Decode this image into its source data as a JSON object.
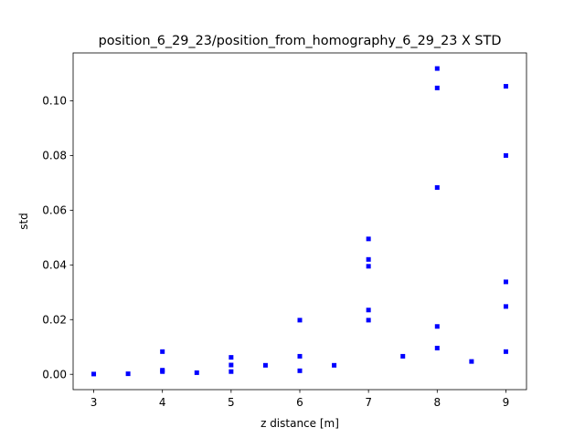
{
  "chart_data": {
    "type": "scatter",
    "title": "position_6_29_23/position_from_homography_6_29_23 X STD",
    "xlabel": "z distance [m]",
    "ylabel": "std",
    "xlim": [
      2.7,
      9.3
    ],
    "ylim": [
      -0.0056,
      0.1175
    ],
    "x_ticks": [
      3,
      4,
      5,
      6,
      7,
      8,
      9
    ],
    "x_tick_labels": [
      "3",
      "4",
      "5",
      "6",
      "7",
      "8",
      "9"
    ],
    "y_ticks": [
      0.0,
      0.02,
      0.04,
      0.06,
      0.08,
      0.1
    ],
    "y_tick_labels": [
      "0.00",
      "0.02",
      "0.04",
      "0.06",
      "0.08",
      "0.10"
    ],
    "grid": false,
    "marker": "square",
    "marker_color": "#0000ff",
    "points": [
      {
        "x": 3,
        "y": 0.0001
      },
      {
        "x": 3.5,
        "y": 0.0002
      },
      {
        "x": 4,
        "y": 0.0083
      },
      {
        "x": 4,
        "y": 0.0015
      },
      {
        "x": 4,
        "y": 0.001
      },
      {
        "x": 4.5,
        "y": 0.0006
      },
      {
        "x": 5,
        "y": 0.0062
      },
      {
        "x": 5,
        "y": 0.0034
      },
      {
        "x": 5,
        "y": 0.001
      },
      {
        "x": 5.5,
        "y": 0.0033
      },
      {
        "x": 6,
        "y": 0.0198
      },
      {
        "x": 6,
        "y": 0.0066
      },
      {
        "x": 6,
        "y": 0.0013
      },
      {
        "x": 6.5,
        "y": 0.0033
      },
      {
        "x": 7,
        "y": 0.0495
      },
      {
        "x": 7,
        "y": 0.042
      },
      {
        "x": 7,
        "y": 0.0395
      },
      {
        "x": 7,
        "y": 0.0235
      },
      {
        "x": 7,
        "y": 0.0198
      },
      {
        "x": 7.5,
        "y": 0.0066
      },
      {
        "x": 8,
        "y": 0.1118
      },
      {
        "x": 8,
        "y": 0.1047
      },
      {
        "x": 8,
        "y": 0.0683
      },
      {
        "x": 8,
        "y": 0.0175
      },
      {
        "x": 8,
        "y": 0.0096
      },
      {
        "x": 8.5,
        "y": 0.0047
      },
      {
        "x": 9,
        "y": 0.1053
      },
      {
        "x": 9,
        "y": 0.08
      },
      {
        "x": 9,
        "y": 0.0338
      },
      {
        "x": 9,
        "y": 0.0248
      },
      {
        "x": 9,
        "y": 0.0083
      }
    ]
  }
}
